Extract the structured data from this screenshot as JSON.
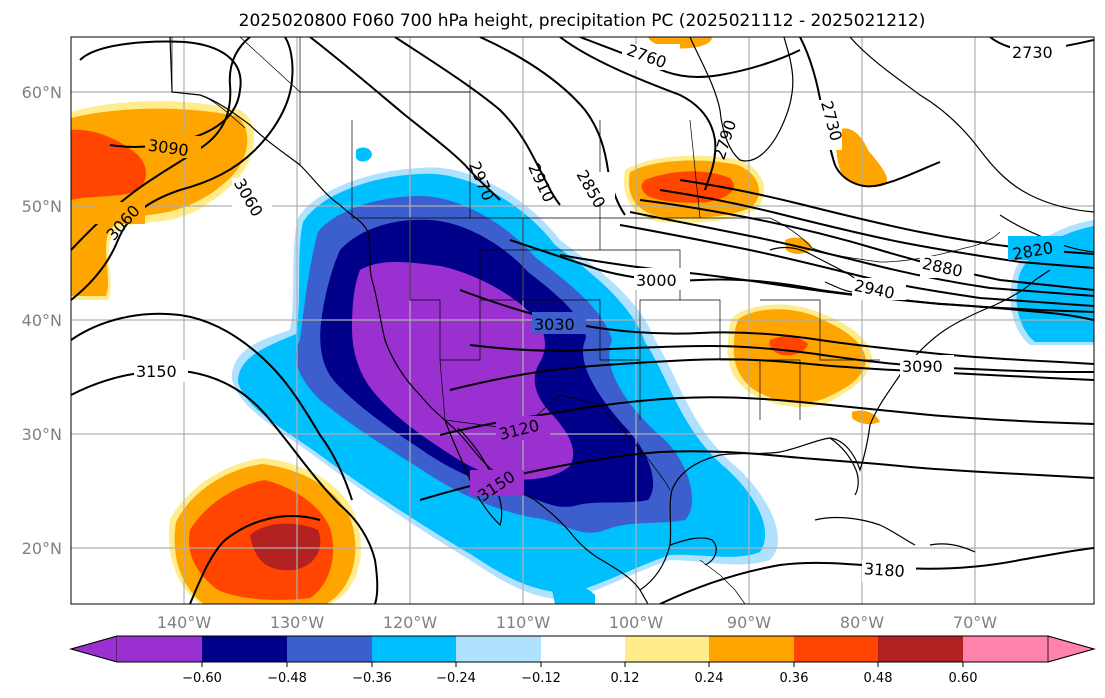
{
  "title": "2025020800 F060 700 hPa height, precipitation PC (2025021112 - 2025021212)",
  "lat_labels": [
    "60°N",
    "50°N",
    "40°N",
    "30°N",
    "20°N"
  ],
  "lon_labels": [
    "140°W",
    "130°W",
    "120°W",
    "110°W",
    "100°W",
    "90°W",
    "80°W",
    "70°W"
  ],
  "contour_labels": [
    "3090",
    "3060",
    "3060",
    "3150",
    "2970",
    "2910",
    "2850",
    "2760",
    "2790",
    "2730",
    "2730",
    "3000",
    "3030",
    "2880",
    "2940",
    "2820",
    "3090",
    "3120",
    "3150",
    "3180"
  ],
  "colorbar": {
    "tick_labels": [
      "−0.60",
      "−0.48",
      "−0.36",
      "−0.24",
      "−0.12",
      "0.12",
      "0.24",
      "0.36",
      "0.48",
      "0.60"
    ],
    "colors": [
      "#9b30d0",
      "#00008b",
      "#3c5fcd",
      "#00bfff",
      "#b0e2ff",
      "#ffffff",
      "#ffec8b",
      "#ffa500",
      "#ff4500",
      "#b22222",
      "#ff82ab"
    ]
  },
  "colors": {
    "purple": "#9b30d0",
    "navy": "#00008b",
    "royal_blue": "#3c5fcd",
    "deep_sky_blue": "#00bfff",
    "light_blue": "#b0e2ff",
    "light_yellow": "#ffec8b",
    "orange": "#ffa500",
    "orange_red": "#ff4500",
    "firebrick": "#b22222",
    "pink": "#ff82ab"
  }
}
